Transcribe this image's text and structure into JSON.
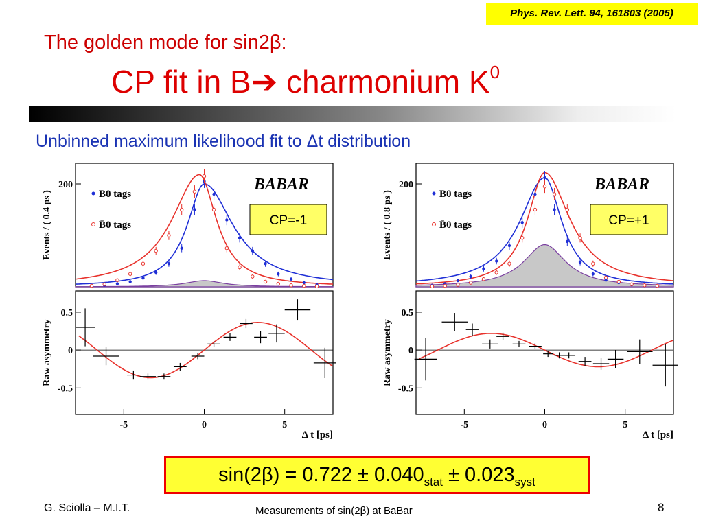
{
  "slide": {
    "reference": "Phys. Rev. Lett. 94, 161803 (2005)",
    "title_line1": "The golden mode for sin2β:",
    "title_line2_main": "CP fit in B➔ charmonium K",
    "title_line2_sup": "0",
    "subtitle": "Unbinned maximum likelihood fit to Δt distribution",
    "result": {
      "prefix": "sin(2β) = 0.722 ± 0.040",
      "stat_sub": "stat",
      "middle": " ± 0.023",
      "syst_sub": "syst"
    },
    "footer_author": "G. Sciolla – M.I.T.",
    "footer_title": "Measurements of sin(2β) at BaBar",
    "page_number": "8"
  },
  "colors": {
    "title_red": "#dd0000",
    "subtitle_blue": "#1a33b3",
    "b0_series": "#1f2fd6",
    "b0bar_series": "#e8322c",
    "background_fill": "#c8c8c8",
    "asym_fit": "#e8322c",
    "cp_box": "#ffff66"
  },
  "chart_data": [
    {
      "type": "line",
      "panel": "CP=-1 Δt distribution",
      "experiment_label": "BABAR",
      "ylabel": "Events / ( 0.4 ps )",
      "xlabel": "",
      "xlim": [
        -8,
        8
      ],
      "ylim": [
        0,
        240
      ],
      "yticks": [
        200
      ],
      "cp_label": "CP=-1",
      "legend": [
        "B0 tags",
        "B̄0 tags"
      ],
      "x": [
        -7,
        -6.2,
        -5.4,
        -4.6,
        -3.8,
        -3,
        -2.2,
        -1.4,
        -0.6,
        0,
        0.6,
        1.4,
        2.2,
        3,
        3.8,
        4.6,
        5.4,
        6.2,
        7
      ],
      "series": [
        {
          "name": "B0 tags",
          "values": [
            1,
            3,
            6,
            10,
            17,
            28,
            45,
            75,
            150,
            205,
            180,
            130,
            95,
            70,
            45,
            25,
            15,
            8,
            4
          ]
        },
        {
          "name": "B̄0 tags",
          "values": [
            2,
            5,
            13,
            25,
            45,
            70,
            100,
            150,
            185,
            215,
            150,
            75,
            38,
            20,
            10,
            6,
            3,
            2,
            1
          ]
        }
      ],
      "fit_b0": {
        "peak": 200,
        "x0": 0,
        "left_width": 1.3,
        "right_width": 2.2
      },
      "fit_b0bar": {
        "peak": 218,
        "x0": -0.3,
        "left_width": 2.1,
        "right_width": 1.3
      },
      "background": {
        "peak": 12,
        "width": 1.4
      }
    },
    {
      "type": "scatter",
      "panel": "CP=-1 raw asymmetry",
      "ylabel": "Raw asymmetry",
      "xlabel": "Δ t [ps]",
      "xlim": [
        -8,
        8
      ],
      "ylim": [
        -0.85,
        0.78
      ],
      "xticks": [
        -5,
        0,
        5
      ],
      "yticks": [
        0.5,
        0,
        -0.5
      ],
      "x": [
        -7.4,
        -6.1,
        -4.4,
        -3.5,
        -2.5,
        -1.5,
        -0.4,
        0.6,
        1.6,
        2.6,
        3.5,
        4.5,
        5.8,
        7.5
      ],
      "y": [
        0.3,
        -0.08,
        -0.33,
        -0.35,
        -0.35,
        -0.22,
        -0.08,
        0.08,
        0.17,
        0.35,
        0.17,
        0.22,
        0.53,
        -0.17
      ],
      "xerr": [
        0.6,
        0.8,
        0.4,
        0.5,
        0.4,
        0.4,
        0.4,
        0.4,
        0.4,
        0.4,
        0.4,
        0.5,
        0.8,
        0.7
      ],
      "yerr": [
        0.25,
        0.12,
        0.06,
        0.04,
        0.04,
        0.05,
        0.04,
        0.04,
        0.05,
        0.06,
        0.08,
        0.12,
        0.14,
        0.2
      ],
      "fit": {
        "amplitude": 0.365,
        "omega": 0.472,
        "x0": -7.8,
        "x1": 8
      }
    },
    {
      "type": "line",
      "panel": "CP=+1 Δt distribution",
      "experiment_label": "BABAR",
      "ylabel": "Events / ( 0.8 ps )",
      "xlabel": "",
      "xlim": [
        -8,
        8
      ],
      "ylim": [
        0,
        240
      ],
      "yticks": [
        200
      ],
      "cp_label": "CP=+1",
      "legend": [
        "B0 tags",
        "B̄0 tags"
      ],
      "x": [
        -7,
        -6.2,
        -5.4,
        -4.6,
        -3.8,
        -3,
        -2.2,
        -1.4,
        -0.6,
        0,
        0.6,
        1.4,
        2.2,
        3,
        3.8,
        4.6,
        5.4,
        6.2,
        7
      ],
      "series": [
        {
          "name": "B0 tags",
          "values": [
            3,
            6,
            12,
            20,
            35,
            50,
            80,
            125,
            180,
            212,
            150,
            88,
            48,
            25,
            13,
            8,
            4,
            2,
            1
          ]
        },
        {
          "name": "B̄0 tags",
          "values": [
            1,
            2,
            4,
            8,
            15,
            28,
            45,
            95,
            150,
            195,
            180,
            150,
            95,
            45,
            18,
            10,
            5,
            3,
            2
          ]
        }
      ],
      "fit_b0": {
        "peak": 212,
        "x0": 0,
        "left_width": 1.9,
        "right_width": 1.3
      },
      "fit_b0bar": {
        "peak": 222,
        "x0": 0,
        "left_width": 1.3,
        "right_width": 1.9
      },
      "background": {
        "peak": 82,
        "width": 1.6
      }
    },
    {
      "type": "scatter",
      "panel": "CP=+1 raw asymmetry",
      "ylabel": "Raw asymmetry",
      "xlabel": "Δ t [ps]",
      "xlim": [
        -8,
        8
      ],
      "ylim": [
        -0.85,
        0.78
      ],
      "xticks": [
        -5,
        0,
        5
      ],
      "yticks": [
        0.5,
        0,
        -0.5
      ],
      "x": [
        -7.4,
        -5.6,
        -4.5,
        -3.4,
        -2.6,
        -1.6,
        -0.6,
        0.2,
        0.9,
        1.5,
        2.5,
        3.5,
        4.4,
        5.9,
        7.5
      ],
      "y": [
        -0.12,
        0.37,
        0.27,
        0.08,
        0.18,
        0.08,
        0.05,
        -0.05,
        -0.07,
        -0.07,
        -0.15,
        -0.18,
        -0.12,
        -0.02,
        -0.2
      ],
      "xerr": [
        0.7,
        0.8,
        0.4,
        0.5,
        0.4,
        0.4,
        0.4,
        0.3,
        0.3,
        0.4,
        0.4,
        0.5,
        0.5,
        0.8,
        0.8
      ],
      "yerr": [
        0.28,
        0.12,
        0.08,
        0.06,
        0.05,
        0.04,
        0.04,
        0.04,
        0.04,
        0.04,
        0.06,
        0.08,
        0.12,
        0.16,
        0.28
      ],
      "fit": {
        "amplitude": -0.22,
        "omega": 0.472,
        "x0": -7.8,
        "x1": 8
      }
    }
  ]
}
